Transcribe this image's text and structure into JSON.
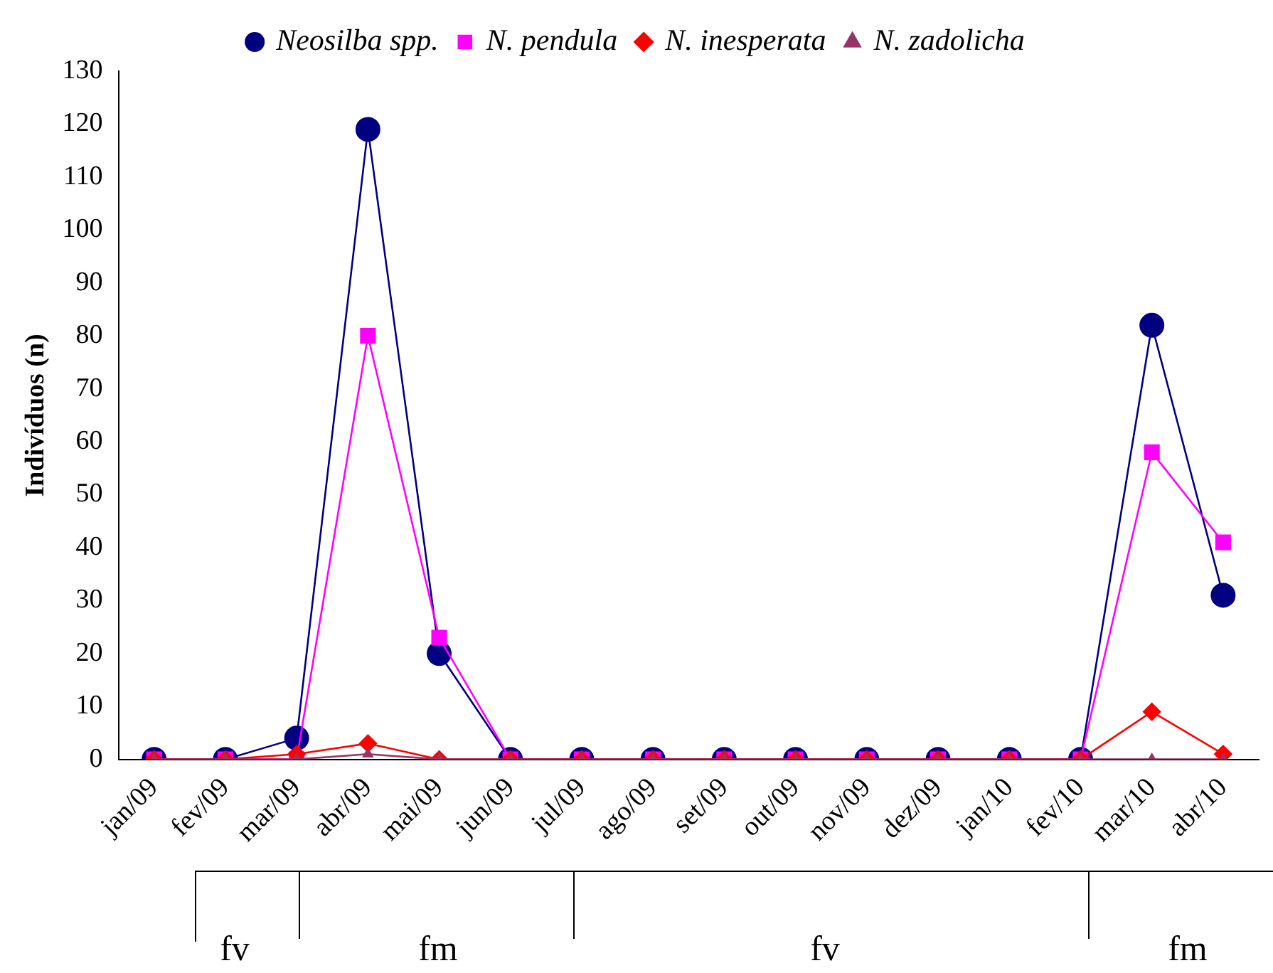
{
  "chart_data": {
    "type": "line",
    "ylabel": "Indivíduos (n)",
    "categories": [
      "jan/09",
      "fev/09",
      "mar/09",
      "abr/09",
      "mai/09",
      "jun/09",
      "jul/09",
      "ago/09",
      "set/09",
      "out/09",
      "nov/09",
      "dez/09",
      "jan/10",
      "fev/10",
      "mar/10",
      "abr/10"
    ],
    "series": [
      {
        "name": "Neosilba spp.",
        "color": "#000080",
        "marker": "circle",
        "values": [
          0,
          0,
          4,
          119,
          20,
          0,
          0,
          0,
          0,
          0,
          0,
          0,
          0,
          0,
          82,
          31
        ]
      },
      {
        "name": "N. pendula",
        "color": "#ff00ff",
        "marker": "square",
        "values": [
          0,
          0,
          0,
          80,
          23,
          0,
          0,
          0,
          0,
          0,
          0,
          0,
          0,
          0,
          58,
          41
        ]
      },
      {
        "name": "N. inesperata",
        "color": "#ff0000",
        "marker": "diamond",
        "values": [
          0,
          0,
          1,
          3,
          0,
          0,
          0,
          0,
          0,
          0,
          0,
          0,
          0,
          0,
          9,
          1
        ]
      },
      {
        "name": "N. zadolicha",
        "color": "#993366",
        "marker": "triangle",
        "values": [
          0,
          0,
          0,
          1,
          0,
          0,
          0,
          0,
          0,
          0,
          0,
          0,
          0,
          0,
          0,
          0
        ]
      }
    ],
    "ylim": [
      0,
      130
    ],
    "yticks": [
      0,
      10,
      20,
      30,
      40,
      50,
      60,
      70,
      80,
      90,
      100,
      110,
      120,
      130
    ],
    "grid": false,
    "legend": "top",
    "line_style": "solid",
    "annotations": [
      "fv",
      "fm",
      "fv",
      "fm"
    ]
  }
}
